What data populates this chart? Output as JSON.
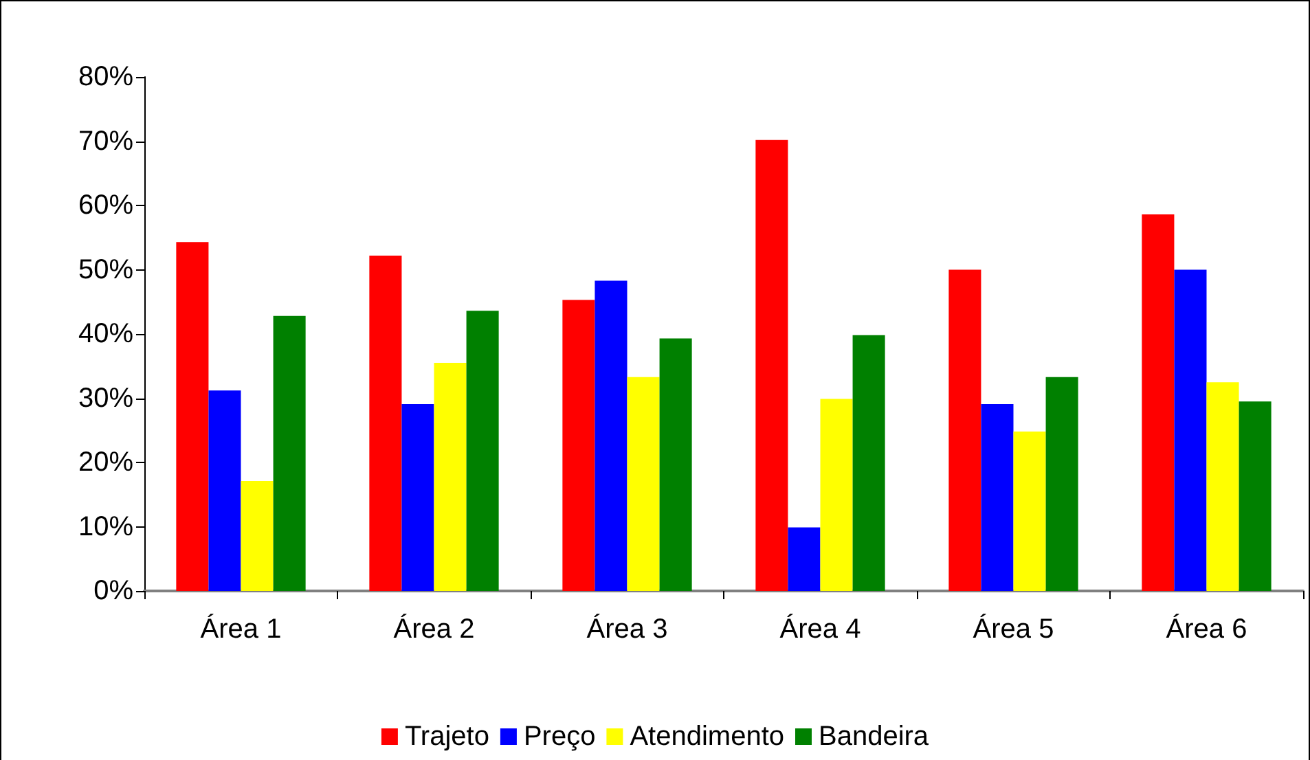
{
  "chart_data": {
    "type": "bar",
    "categories": [
      "Área 1",
      "Área 2",
      "Área 3",
      "Área 4",
      "Área 5",
      "Área 6"
    ],
    "series": [
      {
        "name": "Trajeto",
        "color": "#ff0000",
        "values": [
          54.3,
          52.2,
          45.3,
          70.2,
          50.0,
          58.6
        ]
      },
      {
        "name": "Preço",
        "color": "#0000ff",
        "values": [
          31.2,
          29.1,
          48.3,
          9.9,
          29.1,
          50.0
        ]
      },
      {
        "name": "Atendimento",
        "color": "#ffff00",
        "values": [
          17.1,
          35.5,
          33.3,
          29.9,
          24.8,
          32.5
        ]
      },
      {
        "name": "Bandeira",
        "color": "#008000",
        "values": [
          42.8,
          43.6,
          39.3,
          39.8,
          33.3,
          29.5
        ]
      }
    ],
    "ylim": [
      0,
      80
    ],
    "yticks": [
      {
        "value": 0,
        "label": "0%"
      },
      {
        "value": 10,
        "label": "10%"
      },
      {
        "value": 20,
        "label": "20%"
      },
      {
        "value": 30,
        "label": "30%"
      },
      {
        "value": 40,
        "label": "40%"
      },
      {
        "value": 50,
        "label": "50%"
      },
      {
        "value": 60,
        "label": "60%"
      },
      {
        "value": 70,
        "label": "70%"
      },
      {
        "value": 80,
        "label": "80%"
      }
    ],
    "grid": false,
    "legend": "bottom"
  }
}
